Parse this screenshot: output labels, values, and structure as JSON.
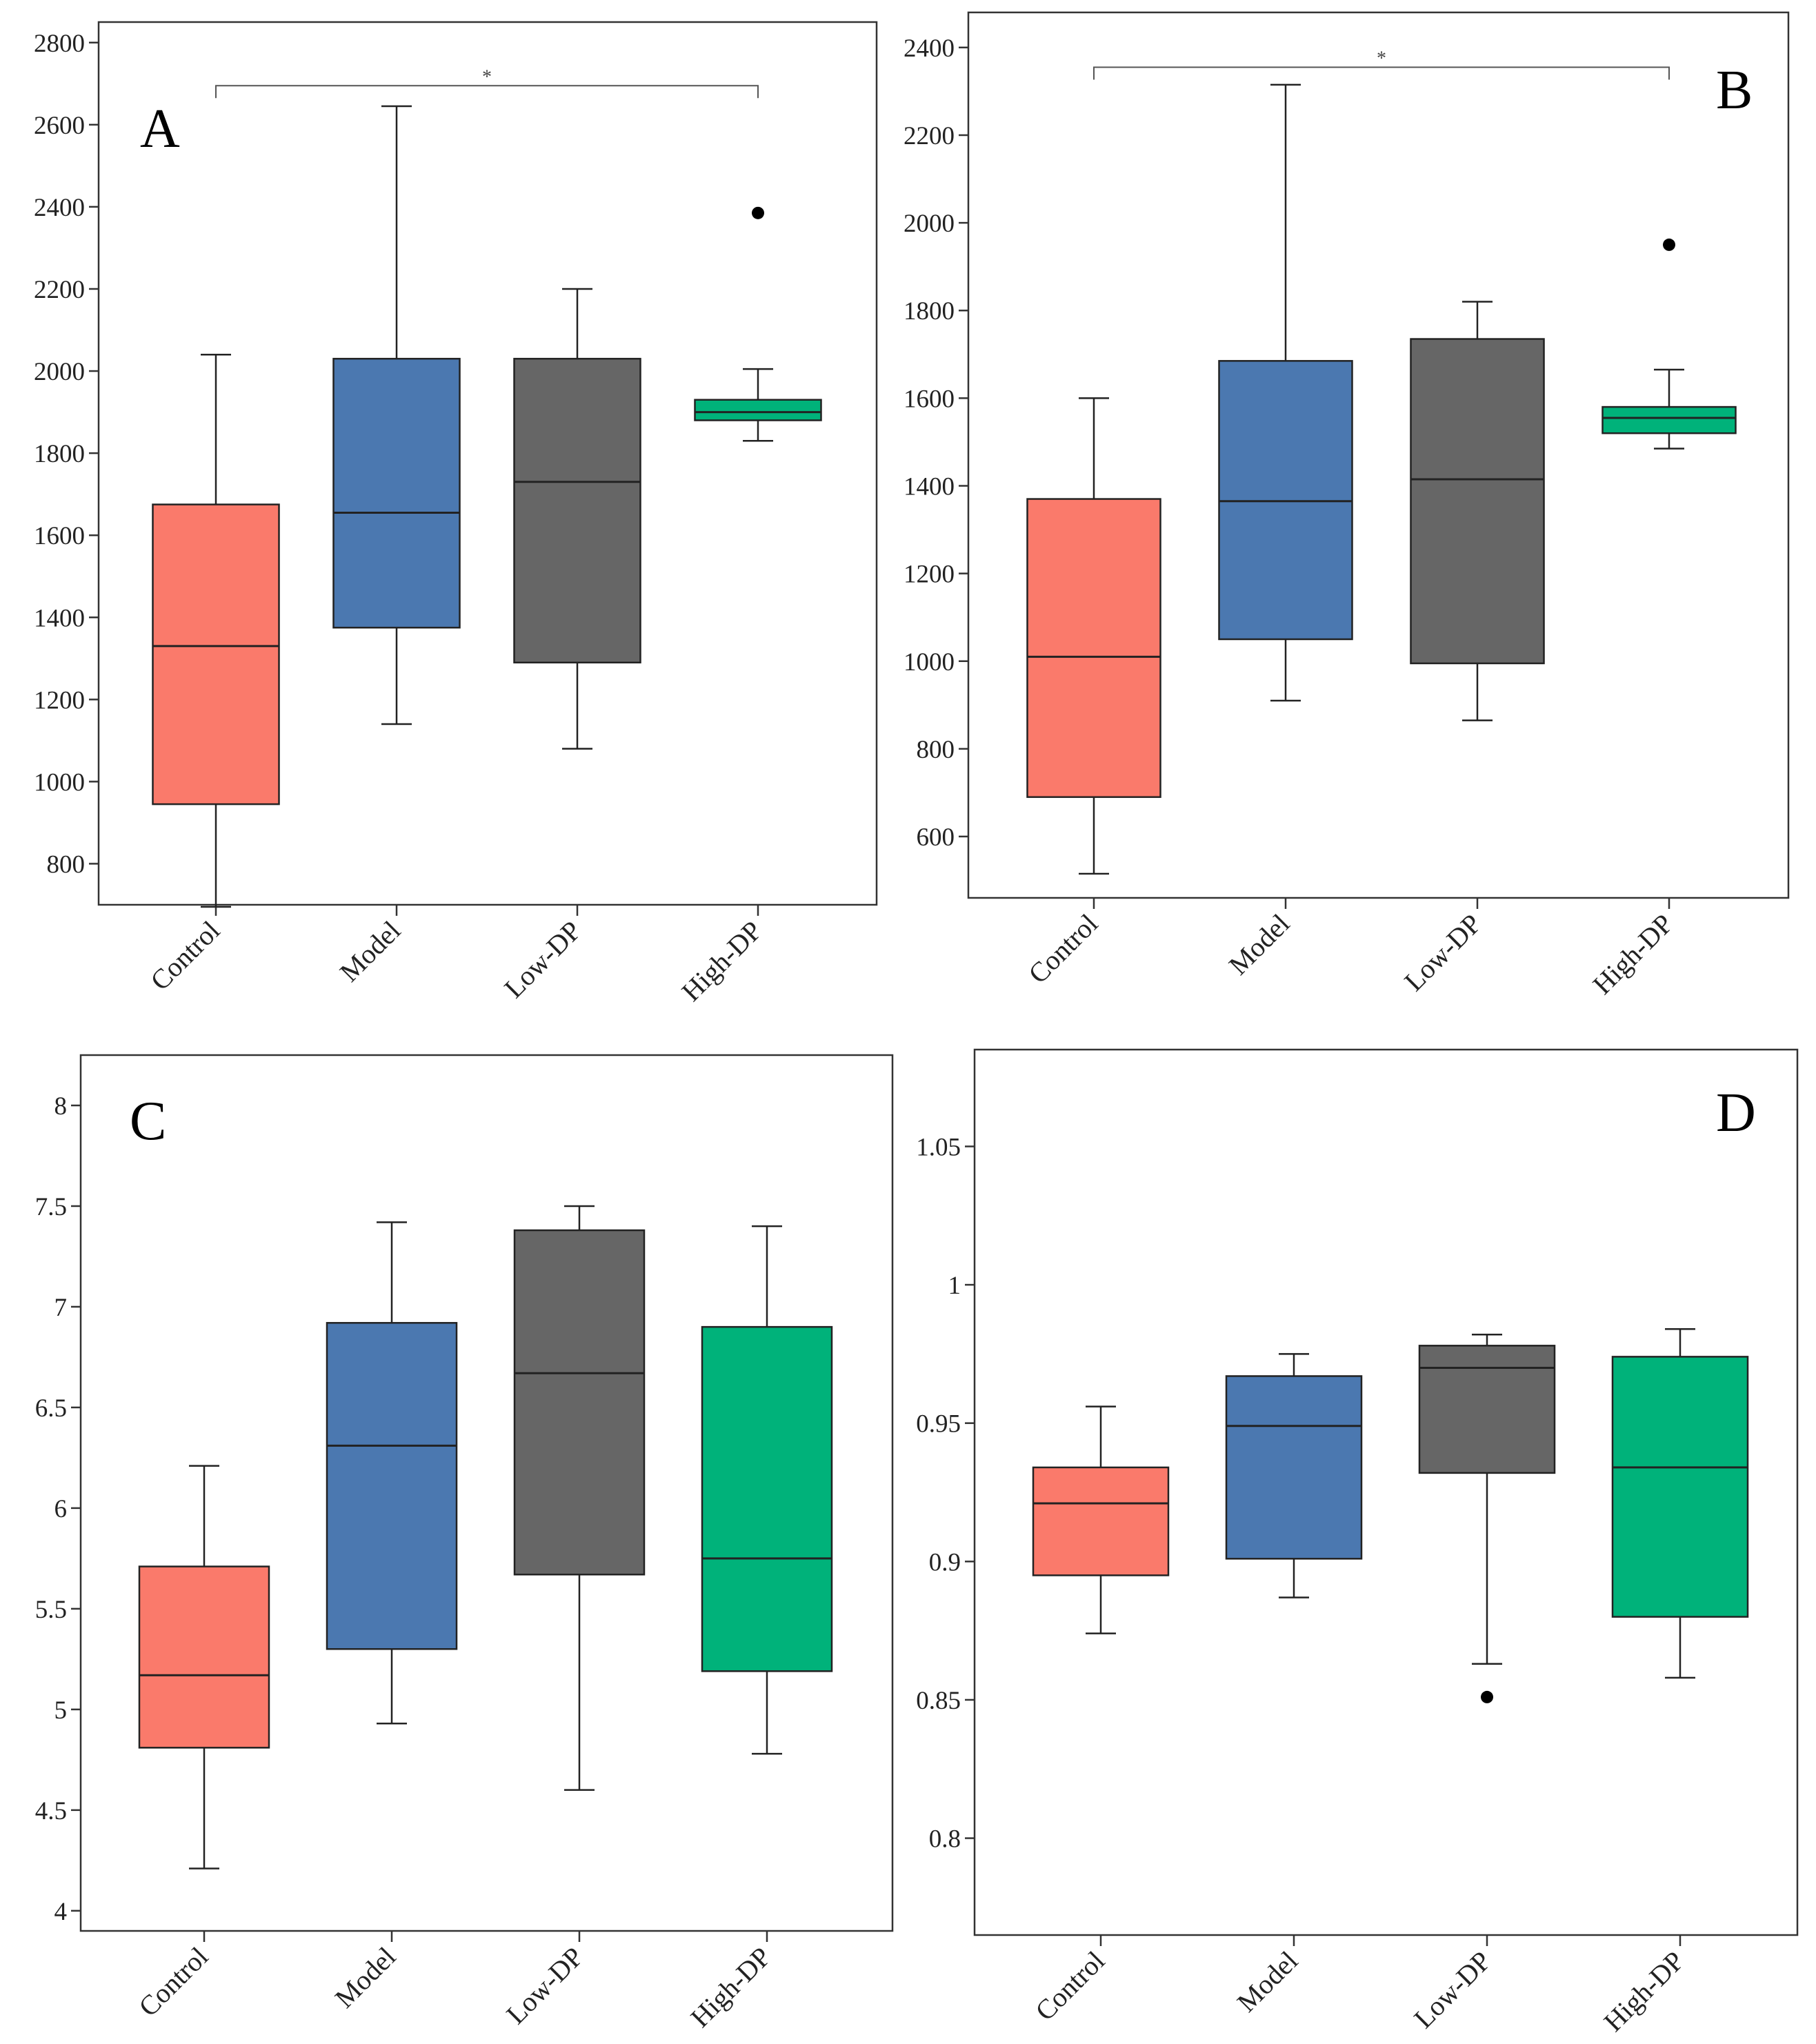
{
  "chart_data": [
    {
      "panel": "A",
      "type": "boxplot",
      "categories": [
        "Control",
        "Model",
        "Low-DP",
        "High-DP"
      ],
      "ylim": [
        700,
        2850
      ],
      "yticks": [
        800,
        1000,
        1200,
        1400,
        1600,
        1800,
        2000,
        2200,
        2400,
        2600,
        2800
      ],
      "ytick_labels": [
        "800",
        "1000",
        "1200",
        "1400",
        "1600",
        "1800",
        "2000",
        "2200",
        "2400",
        "2600",
        "2800"
      ],
      "boxes": [
        {
          "min": 695,
          "q1": 945,
          "median": 1330,
          "q3": 1675,
          "max": 2040,
          "outliers": []
        },
        {
          "min": 1140,
          "q1": 1375,
          "median": 1655,
          "q3": 2030,
          "max": 2645,
          "outliers": []
        },
        {
          "min": 1080,
          "q1": 1290,
          "median": 1730,
          "q3": 2030,
          "max": 2200,
          "outliers": []
        },
        {
          "min": 1830,
          "q1": 1880,
          "median": 1900,
          "q3": 1930,
          "max": 2005,
          "outliers": [
            2385
          ]
        }
      ],
      "significance": {
        "from": "Control",
        "to": "High-DP",
        "label": "*",
        "y": 2695
      }
    },
    {
      "panel": "B",
      "type": "boxplot",
      "categories": [
        "Control",
        "Model",
        "Low-DP",
        "High-DP"
      ],
      "ylim": [
        460,
        2480
      ],
      "yticks": [
        600,
        800,
        1000,
        1200,
        1400,
        1600,
        1800,
        2000,
        2200,
        2400
      ],
      "ytick_labels": [
        "600",
        "800",
        "1000",
        "1200",
        "1400",
        "1600",
        "1800",
        "2000",
        "2200",
        "2400"
      ],
      "boxes": [
        {
          "min": 515,
          "q1": 690,
          "median": 1010,
          "q3": 1370,
          "max": 1600,
          "outliers": []
        },
        {
          "min": 910,
          "q1": 1050,
          "median": 1365,
          "q3": 1685,
          "max": 2315,
          "outliers": []
        },
        {
          "min": 865,
          "q1": 995,
          "median": 1415,
          "q3": 1735,
          "max": 1820,
          "outliers": []
        },
        {
          "min": 1485,
          "q1": 1520,
          "median": 1555,
          "q3": 1580,
          "max": 1665,
          "outliers": [
            1950
          ]
        }
      ],
      "significance": {
        "from": "Control",
        "to": "High-DP",
        "label": "*",
        "y": 2355
      }
    },
    {
      "panel": "C",
      "type": "boxplot",
      "categories": [
        "Control",
        "Model",
        "Low-DP",
        "High-DP"
      ],
      "ylim": [
        3.9,
        8.25
      ],
      "yticks": [
        4,
        4.5,
        5,
        5.5,
        6,
        6.5,
        7,
        7.5,
        8
      ],
      "ytick_labels": [
        "4",
        "4.5",
        "5",
        "5.5",
        "6",
        "6.5",
        "7",
        "7.5",
        "8"
      ],
      "boxes": [
        {
          "min": 4.21,
          "q1": 4.81,
          "median": 5.17,
          "q3": 5.71,
          "max": 6.21,
          "outliers": []
        },
        {
          "min": 4.93,
          "q1": 5.3,
          "median": 6.31,
          "q3": 6.92,
          "max": 7.42,
          "outliers": []
        },
        {
          "min": 4.6,
          "q1": 5.67,
          "median": 6.67,
          "q3": 7.38,
          "max": 7.5,
          "outliers": []
        },
        {
          "min": 4.78,
          "q1": 5.19,
          "median": 5.75,
          "q3": 6.9,
          "max": 7.4,
          "outliers": []
        }
      ]
    },
    {
      "panel": "D",
      "type": "boxplot",
      "categories": [
        "Control",
        "Model",
        "Low-DP",
        "High-DP"
      ],
      "ylim": [
        0.765,
        1.085
      ],
      "yticks": [
        0.8,
        0.85,
        0.9,
        0.95,
        1,
        1.05
      ],
      "ytick_labels": [
        "0.8",
        "0.85",
        "0.9",
        "0.95",
        "1",
        "1.05"
      ],
      "boxes": [
        {
          "min": 0.874,
          "q1": 0.895,
          "median": 0.921,
          "q3": 0.934,
          "max": 0.956,
          "outliers": []
        },
        {
          "min": 0.887,
          "q1": 0.901,
          "median": 0.949,
          "q3": 0.967,
          "max": 0.975,
          "outliers": []
        },
        {
          "min": 0.863,
          "q1": 0.932,
          "median": 0.97,
          "q3": 0.978,
          "max": 0.982,
          "outliers": [
            0.851
          ]
        },
        {
          "min": 0.858,
          "q1": 0.88,
          "median": 0.934,
          "q3": 0.974,
          "max": 0.984,
          "outliers": []
        }
      ]
    }
  ],
  "colors": {
    "Control": "#fa7a6b",
    "Model": "#4b78b0",
    "Low-DP": "#666666",
    "High-DP": "#00b27a",
    "axis": "#333333",
    "stroke": "#222222"
  }
}
